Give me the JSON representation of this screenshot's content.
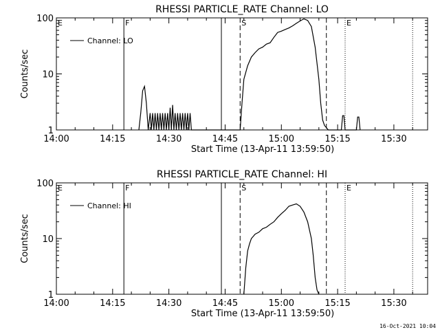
{
  "footer": {
    "timestamp": "16-Oct-2021 10:04"
  },
  "chart_data": [
    {
      "type": "line",
      "title": "RHESSI PARTICLE_RATE Channel: LO",
      "xlabel": "Start Time (13-Apr-11 13:59:50)",
      "ylabel": "Counts/sec",
      "y_scale": "log",
      "ylim": [
        1,
        100
      ],
      "xlim": [
        "14:00",
        "15:39"
      ],
      "x_ticks": [
        "14:00",
        "14:15",
        "14:30",
        "14:45",
        "15:00",
        "15:15",
        "15:30"
      ],
      "y_ticks": [
        "1",
        "10",
        "100"
      ],
      "legend": {
        "entry": "Channel: LO",
        "placement": "top-left"
      },
      "markers": [
        {
          "label": "E",
          "time": "14:00",
          "style": "dotted"
        },
        {
          "label": "F",
          "time": "14:18",
          "style": "solid"
        },
        {
          "label": "",
          "time": "14:44",
          "style": "solid"
        },
        {
          "label": "S",
          "time": "14:49",
          "style": "dashed"
        },
        {
          "label": "",
          "time": "15:12",
          "style": "dashed"
        },
        {
          "label": "E",
          "time": "15:17",
          "style": "dotted"
        },
        {
          "label": "",
          "time": "15:35",
          "style": "dotted"
        }
      ],
      "series": [
        {
          "name": "Channel: LO",
          "x": [
            "14:22:00",
            "14:22:30",
            "14:23:00",
            "14:23:30",
            "14:24:00",
            "14:24:30",
            "14:25:00",
            "14:25:20",
            "14:25:40",
            "14:26:00",
            "14:26:20",
            "14:26:40",
            "14:27:00",
            "14:27:20",
            "14:27:40",
            "14:28:00",
            "14:28:20",
            "14:28:40",
            "14:29:00",
            "14:29:20",
            "14:29:40",
            "14:30:00",
            "14:30:20",
            "14:30:40",
            "14:31:00",
            "14:31:20",
            "14:31:40",
            "14:32:00",
            "14:32:20",
            "14:32:40",
            "14:33:00",
            "14:33:20",
            "14:33:40",
            "14:34:00",
            "14:34:20",
            "14:34:40",
            "14:35:00",
            "14:35:20",
            "14:35:40",
            "14:36:00",
            "14:49:00",
            "14:49:30",
            "14:50:00",
            "14:51:00",
            "14:52:00",
            "14:53:00",
            "14:54:00",
            "14:55:00",
            "14:56:00",
            "14:57:00",
            "14:58:00",
            "14:59:00",
            "15:00:00",
            "15:01:00",
            "15:02:00",
            "15:03:00",
            "15:04:00",
            "15:05:00",
            "15:06:00",
            "15:07:00",
            "15:08:00",
            "15:09:00",
            "15:10:00",
            "15:10:30",
            "15:11:00",
            "15:11:30",
            "15:12:00",
            "15:12:30",
            "15:16:00",
            "15:16:20",
            "15:16:40",
            "15:17:00",
            "15:20:00",
            "15:20:20",
            "15:20:40",
            "15:21:00"
          ],
          "y": [
            1,
            2,
            5,
            6,
            3,
            1,
            2,
            1,
            2,
            1,
            2,
            1,
            2,
            1,
            2,
            1,
            2,
            1,
            2,
            1,
            2,
            1,
            2.5,
            1,
            2.8,
            1,
            2,
            1,
            2,
            1,
            2,
            1,
            2,
            1,
            2,
            1,
            2,
            1,
            2,
            1,
            1,
            3,
            8,
            14,
            20,
            24,
            28,
            30,
            34,
            36,
            45,
            55,
            58,
            62,
            66,
            72,
            80,
            88,
            96,
            90,
            70,
            30,
            8,
            3,
            1.5,
            1.2,
            1.1,
            1,
            1,
            1.8,
            1.8,
            1,
            1,
            1.7,
            1.7,
            1
          ]
        }
      ]
    },
    {
      "type": "line",
      "title": "RHESSI PARTICLE_RATE Channel: HI",
      "xlabel": "Start Time (13-Apr-11 13:59:50)",
      "ylabel": "Counts/sec",
      "y_scale": "log",
      "ylim": [
        1,
        100
      ],
      "xlim": [
        "14:00",
        "15:39"
      ],
      "x_ticks": [
        "14:00",
        "14:15",
        "14:30",
        "14:45",
        "15:00",
        "15:15",
        "15:30"
      ],
      "y_ticks": [
        "1",
        "10",
        "100"
      ],
      "legend": {
        "entry": "Channel: HI",
        "placement": "top-left"
      },
      "markers": [
        {
          "label": "E",
          "time": "14:00",
          "style": "dotted"
        },
        {
          "label": "F",
          "time": "14:18",
          "style": "solid"
        },
        {
          "label": "",
          "time": "14:44",
          "style": "solid"
        },
        {
          "label": "S",
          "time": "14:49",
          "style": "dashed"
        },
        {
          "label": "",
          "time": "15:12",
          "style": "dashed"
        },
        {
          "label": "E",
          "time": "15:17",
          "style": "dotted"
        },
        {
          "label": "",
          "time": "15:35",
          "style": "dotted"
        }
      ],
      "series": [
        {
          "name": "Channel: HI",
          "x": [
            "14:50:00",
            "14:50:30",
            "14:51:00",
            "14:51:30",
            "14:52:00",
            "14:53:00",
            "14:54:00",
            "14:55:00",
            "14:56:00",
            "14:57:00",
            "14:58:00",
            "14:59:00",
            "15:00:00",
            "15:01:00",
            "15:02:00",
            "15:03:00",
            "15:04:00",
            "15:05:00",
            "15:06:00",
            "15:07:00",
            "15:08:00",
            "15:08:30",
            "15:09:00",
            "15:09:30",
            "15:10:00"
          ],
          "y": [
            1,
            3,
            6,
            8,
            10,
            12,
            13,
            15,
            16,
            18,
            20,
            24,
            28,
            32,
            38,
            40,
            42,
            38,
            30,
            20,
            10,
            5,
            2,
            1.2,
            1
          ]
        }
      ]
    }
  ]
}
